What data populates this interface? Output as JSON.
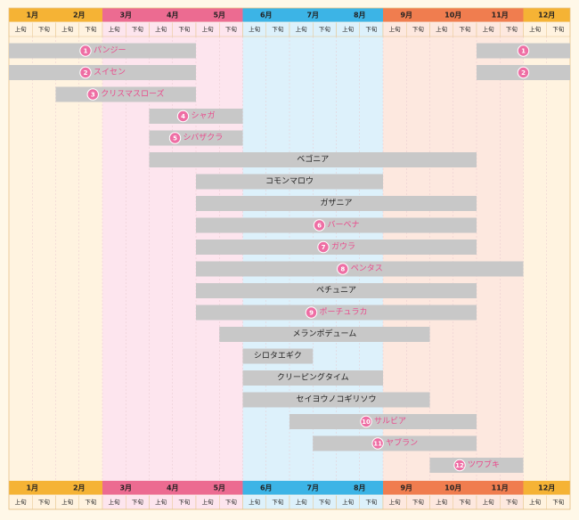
{
  "chart_data": {
    "type": "gantt",
    "months": [
      "1月",
      "2月",
      "3月",
      "4月",
      "5月",
      "6月",
      "7月",
      "8月",
      "9月",
      "10月",
      "11月",
      "12月"
    ],
    "halves": [
      "上旬",
      "下旬"
    ],
    "month_colors": [
      "#f5b335",
      "#f5b335",
      "#ec6b91",
      "#ec6b91",
      "#ec6b91",
      "#3cb4e6",
      "#3cb4e6",
      "#3cb4e6",
      "#f07d4f",
      "#f07d4f",
      "#f07d4f",
      "#f5b335"
    ],
    "band_colors": [
      "#fff3e0",
      "#fff3e0",
      "#fde5ee",
      "#fde5ee",
      "#fde5ee",
      "#ddf1fb",
      "#ddf1fb",
      "#ddf1fb",
      "#fde8df",
      "#fde8df",
      "#fde8df",
      "#fff3e0"
    ],
    "colors": {
      "bar": "#c8c8c8",
      "badge": "#ee6ea4",
      "highlight_text": "#e94b8c"
    },
    "rows": [
      {
        "num": "1",
        "name": "パンジー",
        "highlight": true,
        "segments": [
          {
            "start": 0,
            "end": 8
          },
          {
            "start": 20,
            "end": 24
          }
        ]
      },
      {
        "num": "2",
        "name": "スイセン",
        "highlight": true,
        "segments": [
          {
            "start": 0,
            "end": 8
          },
          {
            "start": 20,
            "end": 24
          }
        ]
      },
      {
        "num": "3",
        "name": "クリスマスローズ",
        "highlight": true,
        "segments": [
          {
            "start": 2,
            "end": 8
          }
        ]
      },
      {
        "num": "4",
        "name": "シャガ",
        "highlight": true,
        "segments": [
          {
            "start": 6,
            "end": 10
          }
        ]
      },
      {
        "num": "5",
        "name": "シバザクラ",
        "highlight": true,
        "segments": [
          {
            "start": 6,
            "end": 10
          }
        ]
      },
      {
        "num": "",
        "name": "ベゴニア",
        "highlight": false,
        "segments": [
          {
            "start": 6,
            "end": 20
          }
        ]
      },
      {
        "num": "",
        "name": "コモンマロウ",
        "highlight": false,
        "segments": [
          {
            "start": 8,
            "end": 16
          }
        ]
      },
      {
        "num": "",
        "name": "ガザニア",
        "highlight": false,
        "segments": [
          {
            "start": 8,
            "end": 20
          }
        ]
      },
      {
        "num": "6",
        "name": "バーベナ",
        "highlight": true,
        "segments": [
          {
            "start": 8,
            "end": 20
          }
        ]
      },
      {
        "num": "7",
        "name": "ガウラ",
        "highlight": true,
        "segments": [
          {
            "start": 8,
            "end": 20
          }
        ]
      },
      {
        "num": "8",
        "name": "ペンタス",
        "highlight": true,
        "segments": [
          {
            "start": 8,
            "end": 22
          }
        ]
      },
      {
        "num": "",
        "name": "ペチュニア",
        "highlight": false,
        "segments": [
          {
            "start": 8,
            "end": 20
          }
        ]
      },
      {
        "num": "9",
        "name": "ポーチュラカ",
        "highlight": true,
        "segments": [
          {
            "start": 8,
            "end": 20
          }
        ]
      },
      {
        "num": "",
        "name": "メランポデューム",
        "highlight": false,
        "segments": [
          {
            "start": 9,
            "end": 18
          }
        ]
      },
      {
        "num": "",
        "name": "シロタエギク",
        "highlight": false,
        "segments": [
          {
            "start": 10,
            "end": 13
          }
        ]
      },
      {
        "num": "",
        "name": "クリーピングタイム",
        "highlight": false,
        "segments": [
          {
            "start": 10,
            "end": 16
          }
        ]
      },
      {
        "num": "",
        "name": "セイヨウノコギリソウ",
        "highlight": false,
        "segments": [
          {
            "start": 10,
            "end": 18
          }
        ]
      },
      {
        "num": "10",
        "name": "サルビア",
        "highlight": true,
        "segments": [
          {
            "start": 12,
            "end": 20
          }
        ]
      },
      {
        "num": "11",
        "name": "ヤブラン",
        "highlight": true,
        "segments": [
          {
            "start": 13,
            "end": 20
          }
        ]
      },
      {
        "num": "12",
        "name": "ツワブキ",
        "highlight": true,
        "segments": [
          {
            "start": 18,
            "end": 22
          }
        ]
      }
    ]
  }
}
